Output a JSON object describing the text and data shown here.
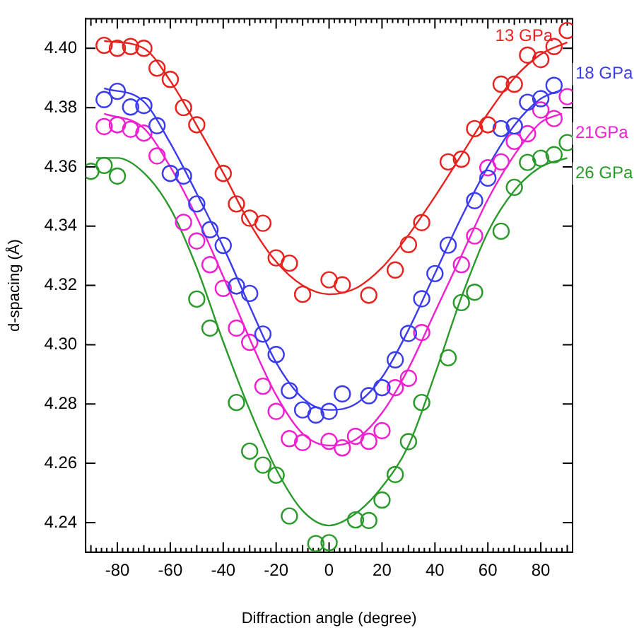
{
  "chart_data": {
    "type": "scatter",
    "xlabel": "Diffraction angle (degree)",
    "ylabel": "d-spacing (Å)",
    "xlim": [
      -92,
      92
    ],
    "ylim": [
      4.23,
      4.41
    ],
    "xticks": [
      -80,
      -60,
      -40,
      -20,
      0,
      20,
      40,
      60,
      80
    ],
    "yticks": [
      4.24,
      4.26,
      4.28,
      {
        "value": 4.3,
        "label": "4.30"
      },
      4.32,
      4.34,
      4.36,
      4.38,
      {
        "value": 4.4,
        "label": "4.40"
      }
    ],
    "grid": false,
    "legend": false,
    "series": [
      {
        "name": "13 GPa",
        "type": "scatter",
        "marker": "circle",
        "color": "#e8231f",
        "x": [
          -85,
          -80,
          -75,
          -70,
          -65,
          -60,
          -55,
          -50,
          -40,
          -35,
          -30,
          -25,
          -20,
          -15,
          -10,
          0,
          5,
          15,
          25,
          30,
          35,
          45,
          50,
          55,
          60,
          65,
          70,
          75,
          80,
          85,
          90
        ],
        "values": [
          4.401,
          4.4,
          4.4006,
          4.4,
          4.3933,
          4.3895,
          4.38,
          4.3742,
          4.3578,
          4.3475,
          4.3427,
          4.341,
          4.3293,
          4.3275,
          4.317,
          4.3219,
          4.3202,
          4.3167,
          4.3252,
          4.3338,
          4.3412,
          4.3617,
          4.3626,
          4.3729,
          4.3742,
          4.3879,
          4.3879,
          4.3977,
          4.3962,
          4.4006,
          4.406
        ]
      },
      {
        "name": "18 GPa",
        "type": "scatter",
        "marker": "circle",
        "color": "#3b3bf0",
        "x": [
          -85,
          -80,
          -75,
          -70,
          -65,
          -60,
          -55,
          -50,
          -45,
          -40,
          -35,
          -30,
          -25,
          -20,
          -15,
          -10,
          -5,
          0,
          5,
          15,
          20,
          25,
          30,
          35,
          40,
          45,
          55,
          60,
          65,
          70,
          75,
          80,
          85
        ],
        "values": [
          4.3827,
          4.3855,
          4.3802,
          4.3807,
          4.3739,
          4.3578,
          4.3569,
          4.3475,
          4.3388,
          4.3335,
          4.3198,
          4.3173,
          4.3036,
          4.2967,
          4.2845,
          4.278,
          4.2763,
          4.2775,
          4.2834,
          4.2828,
          4.2855,
          4.2949,
          4.3038,
          4.3155,
          4.324,
          4.3336,
          4.3486,
          4.3562,
          4.3729,
          4.3738,
          4.3818,
          4.383,
          4.3875
        ]
      },
      {
        "name": "21GPa",
        "type": "scatter",
        "marker": "circle",
        "color": "#f020d0",
        "x": [
          -85,
          -80,
          -75,
          -70,
          -65,
          -55,
          -50,
          -45,
          -40,
          -35,
          -30,
          -25,
          -20,
          -15,
          -10,
          0,
          5,
          10,
          15,
          20,
          25,
          30,
          35,
          50,
          55,
          60,
          65,
          70,
          75,
          80,
          85,
          90
        ],
        "values": [
          4.3736,
          4.3742,
          4.3727,
          4.3714,
          4.3637,
          4.3413,
          4.335,
          4.327,
          4.319,
          4.3056,
          4.3008,
          4.286,
          4.2775,
          4.2683,
          4.267,
          4.2674,
          4.2652,
          4.2691,
          4.2674,
          4.271,
          4.2855,
          4.2887,
          4.3041,
          4.327,
          4.3367,
          4.3597,
          4.3617,
          4.3686,
          4.3712,
          4.3792,
          4.3763,
          4.3837
        ]
      },
      {
        "name": "26 GPa",
        "type": "scatter",
        "marker": "circle",
        "color": "#2a9a2a",
        "x": [
          -90,
          -85,
          -80,
          -50,
          -45,
          -35,
          -30,
          -25,
          -20,
          -15,
          -5,
          0,
          10,
          15,
          20,
          25,
          30,
          35,
          45,
          50,
          55,
          65,
          70,
          75,
          80,
          85,
          90
        ],
        "values": [
          4.3585,
          4.3605,
          4.3569,
          4.3154,
          4.3056,
          4.2805,
          4.2641,
          4.2594,
          4.256,
          4.2422,
          4.2329,
          4.2332,
          4.2409,
          4.2407,
          4.2476,
          4.2562,
          4.2673,
          4.2805,
          4.2956,
          4.3142,
          4.3177,
          4.3383,
          4.3531,
          4.3615,
          4.3629,
          4.3641,
          4.3682
        ]
      },
      {
        "type": "line",
        "color": "#e8231f",
        "x": [
          -85,
          -70,
          -60,
          -50,
          -40,
          -30,
          -20,
          -10,
          0,
          10,
          20,
          30,
          40,
          50,
          60,
          70,
          80,
          90
        ],
        "values": [
          4.4025,
          4.4,
          4.389,
          4.374,
          4.358,
          4.341,
          4.328,
          4.32,
          4.317,
          4.319,
          4.326,
          4.337,
          4.35,
          4.364,
          4.378,
          4.39,
          4.398,
          4.402
        ]
      },
      {
        "type": "line",
        "color": "#3b3bf0",
        "x": [
          -85,
          -70,
          -60,
          -50,
          -40,
          -30,
          -20,
          -10,
          0,
          10,
          20,
          30,
          40,
          50,
          60,
          70,
          80,
          88
        ],
        "values": [
          4.3865,
          4.382,
          4.368,
          4.351,
          4.333,
          4.313,
          4.294,
          4.282,
          4.278,
          4.28,
          4.289,
          4.305,
          4.324,
          4.343,
          4.36,
          4.374,
          4.383,
          4.386
        ]
      },
      {
        "type": "line",
        "color": "#f020d0",
        "x": [
          -85,
          -70,
          -60,
          -50,
          -40,
          -30,
          -20,
          -10,
          0,
          10,
          20,
          30,
          40,
          50,
          60,
          70,
          80,
          88
        ],
        "values": [
          4.378,
          4.373,
          4.36,
          4.343,
          4.323,
          4.302,
          4.283,
          4.27,
          4.266,
          4.268,
          4.277,
          4.292,
          4.311,
          4.33,
          4.349,
          4.364,
          4.375,
          4.378
        ]
      },
      {
        "type": "line",
        "color": "#2a9a2a",
        "x": [
          -88,
          -80,
          -70,
          -60,
          -50,
          -40,
          -30,
          -20,
          -10,
          0,
          10,
          20,
          30,
          40,
          50,
          60,
          70,
          80,
          90
        ],
        "values": [
          4.363,
          4.363,
          4.358,
          4.346,
          4.326,
          4.301,
          4.278,
          4.258,
          4.244,
          4.239,
          4.243,
          4.252,
          4.266,
          4.29,
          4.316,
          4.338,
          4.352,
          4.36,
          4.363
        ]
      }
    ]
  }
}
